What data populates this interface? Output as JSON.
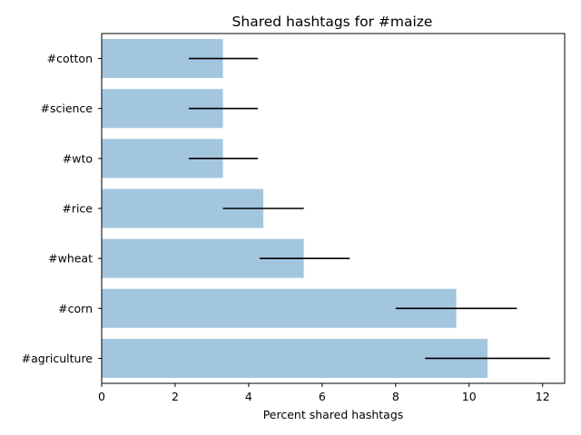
{
  "chart_data": {
    "type": "bar",
    "orientation": "horizontal",
    "title": "Shared hashtags for #maize",
    "xlabel": "Percent shared hashtags",
    "ylabel": "",
    "xlim": [
      0,
      12.6
    ],
    "xticks": [
      0,
      2,
      4,
      6,
      8,
      10,
      12
    ],
    "grid": false,
    "bar_color": "#a3c6df",
    "error_color": "#000000",
    "categories": [
      "#cotton",
      "#science",
      "#wto",
      "#rice",
      "#wheat",
      "#corn",
      "#agriculture"
    ],
    "values": [
      3.3,
      3.3,
      3.3,
      4.4,
      5.5,
      9.65,
      10.5
    ],
    "errors": [
      {
        "low": 2.37,
        "high": 4.25
      },
      {
        "low": 2.37,
        "high": 4.25
      },
      {
        "low": 2.37,
        "high": 4.25
      },
      {
        "low": 3.3,
        "high": 5.5
      },
      {
        "low": 4.3,
        "high": 6.75
      },
      {
        "low": 8.0,
        "high": 11.3
      },
      {
        "low": 8.8,
        "high": 12.2
      }
    ]
  }
}
